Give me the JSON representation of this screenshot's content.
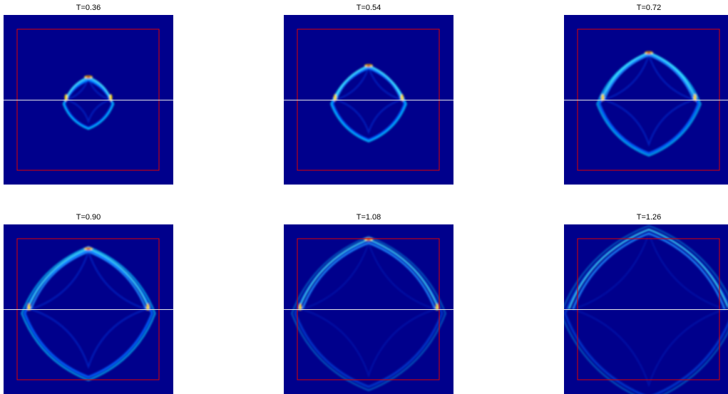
{
  "panels": [
    {
      "title": "T=0.36"
    },
    {
      "title": "T=0.54"
    },
    {
      "title": "T=0.72"
    },
    {
      "title": "T=0.90"
    },
    {
      "title": "T=1.08"
    },
    {
      "title": "T=1.26"
    }
  ]
}
